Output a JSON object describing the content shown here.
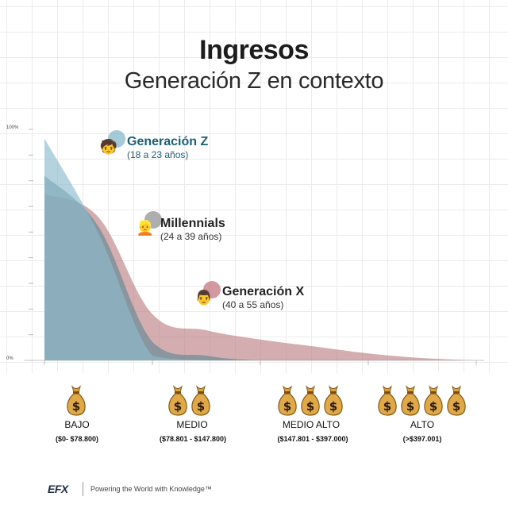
{
  "title": "Ingresos",
  "subtitle": "Generación Z en contexto",
  "y_tick_top": "100%",
  "y_tick_bottom": "0%",
  "series_labels": [
    {
      "name": "Generación Z",
      "range": "(18 a 23 años)",
      "color": "#1a5f7a",
      "emoji": "🧒"
    },
    {
      "name": "Millennials",
      "range": "(24 a 39 años)",
      "color": "#222222",
      "emoji": "👱"
    },
    {
      "name": "Generación X",
      "range": "(40 a 55 años)",
      "color": "#222222",
      "emoji": "👨"
    }
  ],
  "categories": [
    {
      "label": "BAJO",
      "range": "($0- $78.800)",
      "bags": 1
    },
    {
      "label": "MEDIO",
      "range": "($78.801 - $147.800)",
      "bags": 2
    },
    {
      "label": "MEDIO ALTO",
      "range": "($147.801 - $397.000)",
      "bags": 3
    },
    {
      "label": "ALTO",
      "range": "(>$397.001)",
      "bags": 4
    }
  ],
  "footer": {
    "logo": "EFX",
    "tagline": "Powering the World with Knowledge™"
  },
  "chart_data": {
    "type": "area",
    "title": "Ingresos",
    "subtitle": "Generación Z en contexto",
    "ylim": [
      0,
      100
    ],
    "y_ticks": [
      "0%",
      "100%"
    ],
    "x": [
      0,
      0.5,
      1,
      1.5,
      2,
      2.5,
      3,
      3.5,
      4
    ],
    "x_categories": [
      "BAJO",
      "MEDIO",
      "MEDIO ALTO",
      "ALTO"
    ],
    "grid": true,
    "series": [
      {
        "name": "Generación X",
        "color": "#b97a80",
        "values": [
          72,
          62,
          20,
          13,
          9,
          6,
          3,
          1,
          0
        ]
      },
      {
        "name": "Millennials",
        "color": "#6f8c97",
        "values": [
          80,
          58,
          8,
          2,
          0,
          0,
          0,
          0,
          0
        ]
      },
      {
        "name": "Generación Z",
        "color": "#8dbccd",
        "values": [
          96,
          55,
          2,
          0,
          0,
          0,
          0,
          0,
          0
        ]
      }
    ]
  }
}
